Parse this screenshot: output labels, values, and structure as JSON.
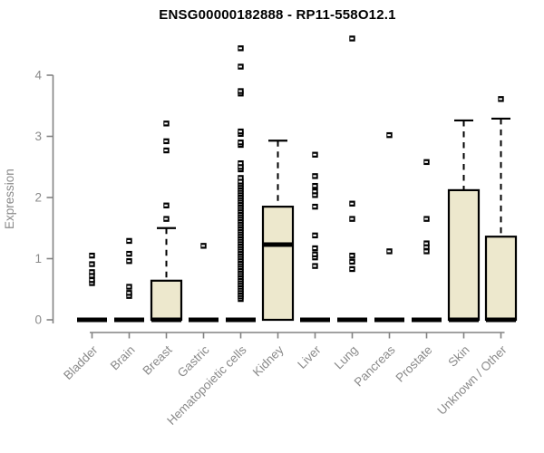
{
  "chart_data": {
    "type": "boxplot",
    "title": "ENSG00000182888 - RP11-558O12.1",
    "ylabel": "Expression",
    "xlabel": "",
    "ylim": [
      0,
      4.65
    ],
    "yticks": [
      0,
      1,
      2,
      3,
      4
    ],
    "grid": false,
    "legend": "none",
    "categories": [
      "Bladder",
      "Brain",
      "Breast",
      "Gastric",
      "Hematopoietic cells",
      "Kidney",
      "Liver",
      "Lung",
      "Pancreas",
      "Prostate",
      "Skin",
      "Unknown / Other"
    ],
    "boxes": [
      {
        "category": "Bladder",
        "q1": 0,
        "median": 0,
        "q3": 0,
        "whisker_low": 0,
        "whisker_high": 0,
        "outliers": [
          0.6,
          0.65,
          0.72,
          0.78,
          0.91,
          1.05
        ]
      },
      {
        "category": "Brain",
        "q1": 0,
        "median": 0,
        "q3": 0,
        "whisker_low": 0,
        "whisker_high": 0,
        "outliers": [
          0.39,
          0.44,
          0.54,
          0.96,
          1.08,
          1.29
        ]
      },
      {
        "category": "Breast",
        "q1": 0,
        "median": 0,
        "q3": 0.64,
        "whisker_low": 0,
        "whisker_high": 1.5,
        "outliers": [
          1.65,
          1.87,
          2.77,
          2.92,
          3.21
        ]
      },
      {
        "category": "Gastric",
        "q1": 0,
        "median": 0,
        "q3": 0,
        "whisker_low": 0,
        "whisker_high": 0,
        "outliers": [
          1.21
        ]
      },
      {
        "category": "Hematopoietic cells",
        "q1": 0,
        "median": 0,
        "q3": 0,
        "whisker_low": 0,
        "whisker_high": 0,
        "outliers": [
          0.34,
          0.38,
          0.42,
          0.46,
          0.5,
          0.54,
          0.58,
          0.62,
          0.66,
          0.7,
          0.74,
          0.78,
          0.82,
          0.86,
          0.9,
          0.94,
          0.98,
          1.02,
          1.06,
          1.1,
          1.14,
          1.18,
          1.22,
          1.26,
          1.3,
          1.34,
          1.38,
          1.42,
          1.46,
          1.5,
          1.54,
          1.58,
          1.62,
          1.66,
          1.7,
          1.74,
          1.78,
          1.82,
          1.86,
          1.9,
          1.94,
          1.98,
          2.02,
          2.06,
          2.1,
          2.14,
          2.18,
          2.22,
          2.26,
          2.32,
          2.46,
          2.5,
          2.56,
          2.86,
          2.9,
          3.04,
          3.08,
          3.7,
          3.74,
          4.14,
          4.44
        ]
      },
      {
        "category": "Kidney",
        "q1": 0,
        "median": 1.23,
        "q3": 1.85,
        "whisker_low": 0,
        "whisker_high": 2.93,
        "outliers": []
      },
      {
        "category": "Liver",
        "q1": 0,
        "median": 0,
        "q3": 0,
        "whisker_low": 0,
        "whisker_high": 0,
        "outliers": [
          0.88,
          1.02,
          1.07,
          1.17,
          1.38,
          1.85,
          2.04,
          2.1,
          2.19,
          2.35,
          2.7
        ]
      },
      {
        "category": "Lung",
        "q1": 0,
        "median": 0,
        "q3": 0,
        "whisker_low": 0,
        "whisker_high": 0,
        "outliers": [
          0.83,
          0.95,
          1.05,
          1.65,
          1.9,
          4.6
        ]
      },
      {
        "category": "Pancreas",
        "q1": 0,
        "median": 0,
        "q3": 0,
        "whisker_low": 0,
        "whisker_high": 0,
        "outliers": [
          1.12,
          3.02
        ]
      },
      {
        "category": "Prostate",
        "q1": 0,
        "median": 0,
        "q3": 0,
        "whisker_low": 0,
        "whisker_high": 0,
        "outliers": [
          1.12,
          1.19,
          1.25,
          1.65,
          2.58
        ]
      },
      {
        "category": "Skin",
        "q1": 0,
        "median": 0,
        "q3": 2.12,
        "whisker_low": 0,
        "whisker_high": 3.26,
        "outliers": []
      },
      {
        "category": "Unknown / Other",
        "q1": 0,
        "median": 0,
        "q3": 1.36,
        "whisker_low": 0,
        "whisker_high": 3.29,
        "outliers": [
          3.61
        ]
      }
    ],
    "colors": {
      "box_fill": "#EDE8CD",
      "box_stroke": "#000000",
      "median": "#000000",
      "outlier": "#000000",
      "axis": "#828282",
      "tick_label": "#8a8a8a",
      "title": "#000000",
      "background": "#ffffff"
    }
  }
}
